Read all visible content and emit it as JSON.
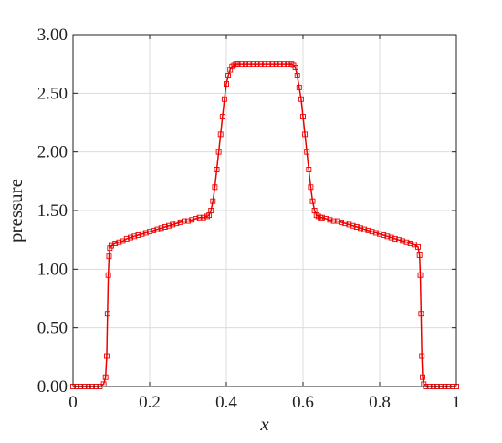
{
  "chart_data": {
    "type": "line",
    "title": "",
    "xlabel": "x",
    "ylabel": "pressure",
    "xlim": [
      0,
      1
    ],
    "ylim": [
      0,
      3
    ],
    "grid": true,
    "legend": "none",
    "line_color": "#ee0000",
    "marker": "square",
    "x_ticks": [
      "0",
      "0.2",
      "0.4",
      "0.6",
      "0.8",
      "1"
    ],
    "y_ticks": [
      "0.00",
      "0.50",
      "1.00",
      "1.50",
      "2.00",
      "2.50",
      "3.00"
    ],
    "x_tick_values": [
      0,
      0.2,
      0.4,
      0.6,
      0.8,
      1
    ],
    "y_tick_values": [
      0,
      0.5,
      1,
      1.5,
      2,
      2.5,
      3
    ],
    "series": [
      {
        "x": [
          0,
          0.01,
          0.02,
          0.03,
          0.04,
          0.05,
          0.06,
          0.07,
          0.08,
          0.085,
          0.088,
          0.09,
          0.092,
          0.094,
          0.096,
          0.1,
          0.11,
          0.12,
          0.13,
          0.14,
          0.15,
          0.16,
          0.17,
          0.18,
          0.19,
          0.2,
          0.21,
          0.22,
          0.23,
          0.24,
          0.25,
          0.26,
          0.27,
          0.28,
          0.29,
          0.3,
          0.31,
          0.32,
          0.33,
          0.34,
          0.35,
          0.355,
          0.36,
          0.365,
          0.37,
          0.375,
          0.38,
          0.385,
          0.39,
          0.395,
          0.4,
          0.405,
          0.41,
          0.415,
          0.42,
          0.425,
          0.43,
          0.44,
          0.45,
          0.46,
          0.47,
          0.48,
          0.49,
          0.5,
          0.51,
          0.52,
          0.53,
          0.54,
          0.55,
          0.56,
          0.57,
          0.575,
          0.58,
          0.585,
          0.59,
          0.595,
          0.6,
          0.605,
          0.61,
          0.615,
          0.62,
          0.625,
          0.63,
          0.635,
          0.64,
          0.645,
          0.65,
          0.66,
          0.67,
          0.68,
          0.69,
          0.7,
          0.71,
          0.72,
          0.73,
          0.74,
          0.75,
          0.76,
          0.77,
          0.78,
          0.79,
          0.8,
          0.81,
          0.82,
          0.83,
          0.84,
          0.85,
          0.86,
          0.87,
          0.88,
          0.89,
          0.9,
          0.904,
          0.906,
          0.908,
          0.91,
          0.912,
          0.915,
          0.92,
          0.93,
          0.94,
          0.95,
          0.96,
          0.97,
          0.98,
          0.99,
          1.0
        ],
        "y": [
          0,
          0,
          0,
          0,
          0,
          0,
          0,
          0,
          0.02,
          0.08,
          0.26,
          0.62,
          0.95,
          1.11,
          1.18,
          1.2,
          1.22,
          1.23,
          1.24,
          1.26,
          1.27,
          1.28,
          1.29,
          1.3,
          1.31,
          1.32,
          1.33,
          1.34,
          1.35,
          1.36,
          1.37,
          1.38,
          1.39,
          1.4,
          1.41,
          1.41,
          1.42,
          1.43,
          1.44,
          1.44,
          1.45,
          1.46,
          1.5,
          1.58,
          1.7,
          1.85,
          2.0,
          2.15,
          2.3,
          2.45,
          2.58,
          2.65,
          2.7,
          2.73,
          2.74,
          2.75,
          2.75,
          2.75,
          2.75,
          2.75,
          2.75,
          2.75,
          2.75,
          2.75,
          2.75,
          2.75,
          2.75,
          2.75,
          2.75,
          2.75,
          2.75,
          2.74,
          2.72,
          2.65,
          2.55,
          2.45,
          2.3,
          2.15,
          2.0,
          1.85,
          1.7,
          1.58,
          1.5,
          1.46,
          1.45,
          1.44,
          1.44,
          1.43,
          1.42,
          1.41,
          1.41,
          1.4,
          1.39,
          1.38,
          1.37,
          1.36,
          1.35,
          1.34,
          1.33,
          1.32,
          1.31,
          1.3,
          1.29,
          1.28,
          1.27,
          1.26,
          1.25,
          1.24,
          1.23,
          1.22,
          1.21,
          1.19,
          1.12,
          0.95,
          0.62,
          0.26,
          0.08,
          0.02,
          0,
          0,
          0,
          0,
          0,
          0,
          0,
          0,
          0
        ]
      }
    ]
  }
}
